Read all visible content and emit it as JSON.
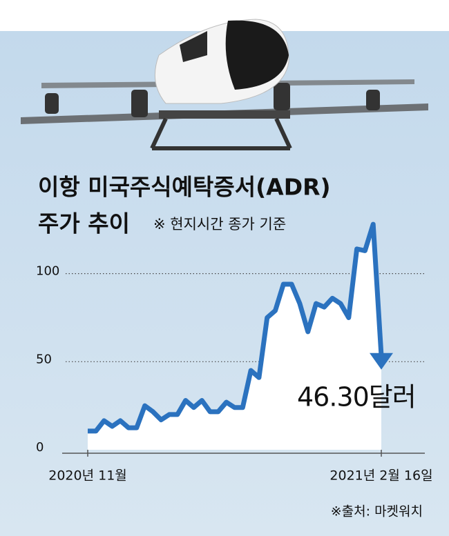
{
  "chart_data": {
    "type": "line",
    "title": [
      "이항 미국주식예탁증서(ADR)",
      "주가 추이"
    ],
    "subtitle": "※ 현지시간 종가 기준",
    "source": "※출처: 마켓워치",
    "categories": [
      "2020년 11월",
      null,
      null,
      null,
      null,
      null,
      null,
      null,
      null,
      null,
      null,
      null,
      null,
      null,
      null,
      null,
      null,
      null,
      null,
      null,
      null,
      null,
      null,
      null,
      null,
      null,
      null,
      null,
      null,
      null,
      null,
      null,
      null,
      null,
      null,
      null,
      "2021년 2월 16일"
    ],
    "values": [
      10.6,
      10.6,
      16.5,
      13.3,
      16.5,
      12.5,
      12.5,
      25,
      21.6,
      17,
      20,
      20,
      28,
      24,
      28,
      21.6,
      21.6,
      27,
      24,
      24,
      45,
      41,
      75,
      79,
      94,
      94,
      83,
      67,
      83,
      81,
      86,
      83,
      75,
      114,
      113,
      128,
      46.3
    ],
    "value_labels": [
      null,
      null,
      null,
      null,
      null,
      null,
      null,
      null,
      null,
      null,
      null,
      null,
      null,
      null,
      null,
      null,
      null,
      null,
      null,
      null,
      null,
      null,
      null,
      null,
      null,
      null,
      null,
      null,
      null,
      null,
      null,
      null,
      null,
      null,
      null,
      null,
      "46.30달러"
    ],
    "color": "#2b72bf",
    "ylim": [
      0,
      130
    ],
    "yticks": [
      0,
      50,
      100
    ],
    "grid": true
  }
}
